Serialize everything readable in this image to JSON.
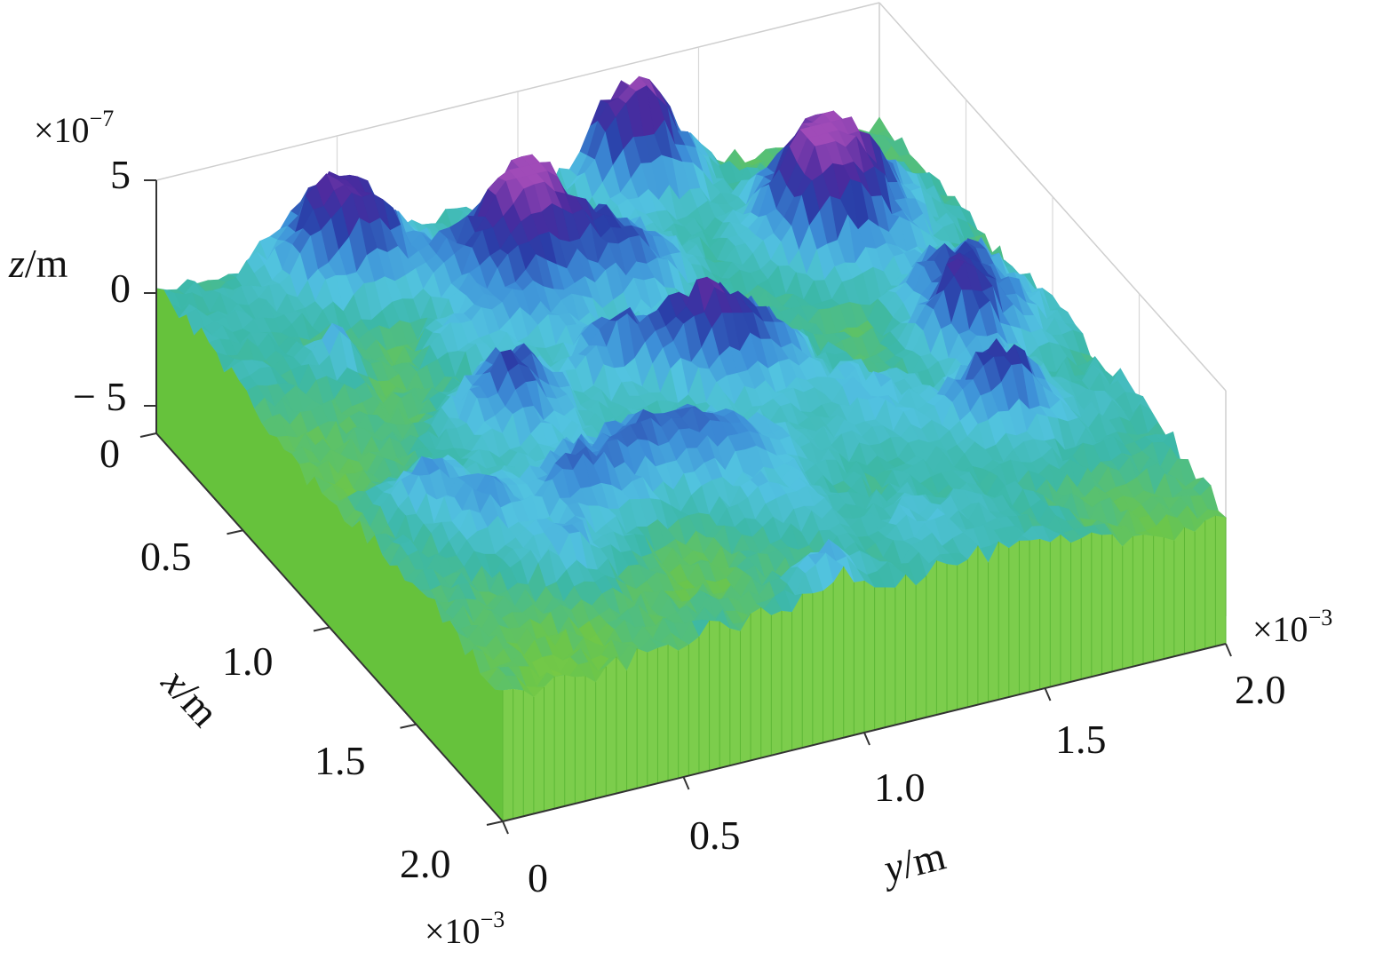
{
  "chart_data": {
    "type": "surface",
    "title": "",
    "x_axis": {
      "label_var": "x",
      "label_unit": "/m",
      "ticks": [
        "0",
        "0.5",
        "1.0",
        "1.5",
        "2.0"
      ],
      "range": [
        0,
        2.0
      ],
      "multiplier": "×10",
      "multiplier_exp": "−3"
    },
    "y_axis": {
      "label_var": "y",
      "label_unit": "/m",
      "ticks": [
        "0",
        "0.5",
        "1.0",
        "1.5",
        "2.0"
      ],
      "range": [
        0,
        2.0
      ],
      "multiplier": "×10",
      "multiplier_exp": "−3"
    },
    "z_axis": {
      "label_var": "z",
      "label_unit": "/m",
      "ticks": [
        "5",
        "0",
        "− 5"
      ],
      "tick_values": [
        5,
        0,
        -5
      ],
      "range": [
        -5,
        5
      ],
      "multiplier": "×10",
      "multiplier_exp": "−7"
    },
    "grid": true,
    "colormap": [
      "#f0e62a",
      "#8ccf3c",
      "#6cc64a",
      "#3cb8a8",
      "#52c3e0",
      "#3d8fd8",
      "#2a3ea8",
      "#4a2a9e",
      "#a04bb8"
    ],
    "side_color": "#66c23c",
    "peaks_approx_x1e3_y1e3_z1e7": [
      [
        0.05,
        1.3,
        4.6
      ],
      [
        0.35,
        0.85,
        4.0
      ],
      [
        0.1,
        0.45,
        2.6
      ],
      [
        0.9,
        0.55,
        2.4
      ],
      [
        0.95,
        1.15,
        2.3
      ],
      [
        1.05,
        1.75,
        2.0
      ],
      [
        0.4,
        1.7,
        2.2
      ]
    ]
  }
}
